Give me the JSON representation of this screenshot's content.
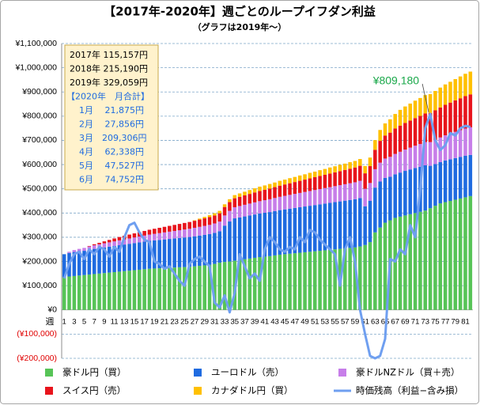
{
  "chart_data": {
    "type": "bar",
    "stacked": true,
    "title": "【2017年-2020年】週ごとのループイフダン利益",
    "subtitle": "（グラフは2019年〜）",
    "x_label": "週",
    "categories": [
      "1",
      null,
      "3",
      null,
      "5",
      null,
      "7",
      null,
      "9",
      null,
      "11",
      null,
      "13",
      null,
      "15",
      null,
      "17",
      null,
      "19",
      null,
      "21",
      null,
      "23",
      null,
      "25",
      null,
      "27",
      null,
      "29",
      null,
      "31",
      null,
      "33",
      null,
      "35",
      null,
      "37",
      null,
      "39",
      null,
      "41",
      null,
      "43",
      null,
      "45",
      null,
      "47",
      null,
      "49",
      null,
      "51",
      null,
      "53",
      null,
      "55",
      null,
      "57",
      null,
      "59",
      null,
      "61",
      null,
      "63",
      null,
      "65",
      null,
      "67",
      null,
      "69",
      null,
      "71",
      null,
      "73",
      null,
      "75",
      null,
      "77",
      null,
      "79",
      null,
      "81",
      null
    ],
    "ylim": [
      -200000,
      1100000
    ],
    "yticks": [
      {
        "value": -200000,
        "label": "(¥200,000)"
      },
      {
        "value": -100000,
        "label": "(¥100,000)"
      },
      {
        "value": 0,
        "label": "¥0"
      },
      {
        "value": 100000,
        "label": "¥100,000"
      },
      {
        "value": 200000,
        "label": "¥200,000"
      },
      {
        "value": 300000,
        "label": "¥300,000"
      },
      {
        "value": 400000,
        "label": "¥400,000"
      },
      {
        "value": 500000,
        "label": "¥500,000"
      },
      {
        "value": 600000,
        "label": "¥600,000"
      },
      {
        "value": 700000,
        "label": "¥700,000"
      },
      {
        "value": 800000,
        "label": "¥800,000"
      },
      {
        "value": 900000,
        "label": "¥900,000"
      },
      {
        "value": 1000000,
        "label": "¥1,000,000"
      },
      {
        "value": 1100000,
        "label": "¥1,100,000"
      }
    ],
    "grid": true,
    "series": [
      {
        "name": "豪ドル円（買）",
        "color": "#57c457",
        "values": [
          135000,
          138000,
          140000,
          142000,
          144000,
          146000,
          148000,
          150000,
          152000,
          154000,
          156000,
          158000,
          160000,
          162000,
          164000,
          166000,
          168000,
          170000,
          171000,
          172000,
          173000,
          174000,
          175000,
          176000,
          177000,
          178000,
          180000,
          182000,
          184000,
          186000,
          190000,
          195000,
          198000,
          200000,
          203000,
          206000,
          209000,
          212000,
          215000,
          218000,
          220000,
          222000,
          225000,
          228000,
          230000,
          232000,
          234000,
          236000,
          238000,
          240000,
          242000,
          244000,
          246000,
          248000,
          250000,
          252000,
          254000,
          256000,
          258000,
          262000,
          268000,
          280000,
          320000,
          340000,
          360000,
          370000,
          380000,
          385000,
          390000,
          395000,
          400000,
          405000,
          410000,
          420000,
          430000,
          440000,
          445000,
          450000,
          455000,
          460000,
          465000,
          470000
        ]
      },
      {
        "name": "ユーロドル（売）",
        "color": "#1f6be0",
        "values": [
          95000,
          97000,
          99000,
          100000,
          100000,
          102000,
          104000,
          105000,
          106000,
          107000,
          108000,
          109000,
          110000,
          111000,
          112000,
          113000,
          114000,
          115000,
          116000,
          117000,
          118000,
          119000,
          120000,
          121000,
          122000,
          123000,
          124000,
          125000,
          126000,
          127000,
          128000,
          130000,
          150000,
          165000,
          175000,
          176000,
          177000,
          178000,
          179000,
          180000,
          181000,
          182000,
          183000,
          184000,
          185000,
          186000,
          187000,
          188000,
          189000,
          190000,
          191000,
          192000,
          193000,
          194000,
          195000,
          196000,
          197000,
          198000,
          199000,
          200000,
          160000,
          170000,
          185000,
          190000,
          185000,
          180000,
          180000,
          182000,
          184000,
          185000,
          186000,
          186000,
          187000,
          175000,
          172000,
          170000,
          172000,
          172000,
          172000,
          172000,
          172000,
          170000
        ]
      },
      {
        "name": "豪ドルNZドル（買＋売）",
        "color": "#c77ee9",
        "values": [
          0,
          5000,
          8000,
          10000,
          12000,
          14000,
          15000,
          16000,
          17000,
          18000,
          19000,
          20000,
          21000,
          22000,
          23000,
          24000,
          25000,
          26000,
          27000,
          28000,
          29000,
          30000,
          31000,
          32000,
          33000,
          34000,
          35000,
          36000,
          37000,
          38000,
          39000,
          40000,
          42000,
          44000,
          46000,
          47000,
          48000,
          49000,
          50000,
          51000,
          52000,
          53000,
          54000,
          55000,
          56000,
          57000,
          58000,
          59000,
          60000,
          61000,
          62000,
          63000,
          64000,
          65000,
          66000,
          67000,
          68000,
          69000,
          70000,
          71000,
          72000,
          74000,
          76000,
          78000,
          80000,
          82000,
          84000,
          86000,
          88000,
          90000,
          92000,
          94000,
          96000,
          98000,
          100000,
          102000,
          104000,
          106000,
          108000,
          110000,
          112000,
          114000
        ]
      },
      {
        "name": "スイス円（売）",
        "color": "#e8141c",
        "values": [
          0,
          0,
          0,
          0,
          0,
          2000,
          4000,
          6000,
          8000,
          10000,
          12000,
          14000,
          15000,
          16000,
          17000,
          18000,
          19000,
          20000,
          21000,
          22000,
          23000,
          24000,
          25000,
          26000,
          27000,
          28000,
          29000,
          30000,
          31000,
          32000,
          33000,
          34000,
          35000,
          36000,
          37000,
          38000,
          39000,
          40000,
          41000,
          42000,
          43000,
          44000,
          45000,
          46000,
          47000,
          48000,
          49000,
          50000,
          51000,
          52000,
          53000,
          54000,
          55000,
          56000,
          57000,
          58000,
          59000,
          60000,
          61000,
          62000,
          64000,
          70000,
          80000,
          90000,
          95000,
          100000,
          105000,
          108000,
          110000,
          112000,
          114000,
          116000,
          118000,
          120000,
          122000,
          124000,
          126000,
          128000,
          130000,
          132000,
          134000,
          136000
        ]
      },
      {
        "name": "カナダドル円（買）",
        "color": "#ffc000",
        "values": [
          0,
          0,
          0,
          0,
          0,
          0,
          0,
          0,
          0,
          0,
          0,
          0,
          0,
          0,
          0,
          0,
          0,
          0,
          0,
          0,
          0,
          0,
          0,
          0,
          0,
          0,
          2000,
          4000,
          6000,
          8000,
          9000,
          10000,
          11000,
          12000,
          13000,
          14000,
          15000,
          16000,
          17000,
          18000,
          18000,
          19000,
          19000,
          20000,
          20000,
          21000,
          21000,
          22000,
          22000,
          23000,
          23000,
          24000,
          24000,
          25000,
          25000,
          26000,
          26000,
          27000,
          27000,
          28000,
          30000,
          35000,
          40000,
          45000,
          50000,
          55000,
          60000,
          65000,
          68000,
          70000,
          72000,
          74000,
          76000,
          78000,
          80000,
          82000,
          84000,
          86000,
          88000,
          90000,
          92000,
          94000
        ]
      },
      {
        "name": "時価残高（利益−含み損）",
        "color": "#6f9ff0",
        "type": "line",
        "values": [
          130000,
          190000,
          230000,
          240000,
          210000,
          250000,
          230000,
          260000,
          250000,
          220000,
          260000,
          240000,
          300000,
          350000,
          360000,
          320000,
          290000,
          280000,
          200000,
          190000,
          170000,
          180000,
          150000,
          120000,
          100000,
          190000,
          210000,
          220000,
          200000,
          180000,
          30000,
          10000,
          60000,
          -10000,
          70000,
          230000,
          180000,
          130000,
          150000,
          120000,
          250000,
          300000,
          280000,
          250000,
          240000,
          260000,
          250000,
          300000,
          280000,
          330000,
          320000,
          290000,
          270000,
          250000,
          230000,
          100000,
          250000,
          300000,
          200000,
          0,
          -100000,
          -190000,
          -200000,
          -190000,
          -120000,
          210000,
          200000,
          250000,
          230000,
          350000,
          300000,
          500000,
          750000,
          809180,
          700000,
          660000,
          680000,
          730000,
          720000,
          750000,
          760000,
          755000
        ]
      }
    ],
    "annotation": {
      "text": "¥809,180",
      "color": "#1aa84a"
    },
    "info_box": {
      "years": [
        "2017年 115,157円",
        "2018年 215,190円",
        "2019年 329,059円"
      ],
      "month_heading": "【2020年　月合計】",
      "months": [
        "1月　 21,875円",
        "2月　 27,856円",
        "3月　209,306円",
        "4月　 62,338円",
        "5月　 47,527円",
        "6月　 74,752円"
      ]
    }
  }
}
